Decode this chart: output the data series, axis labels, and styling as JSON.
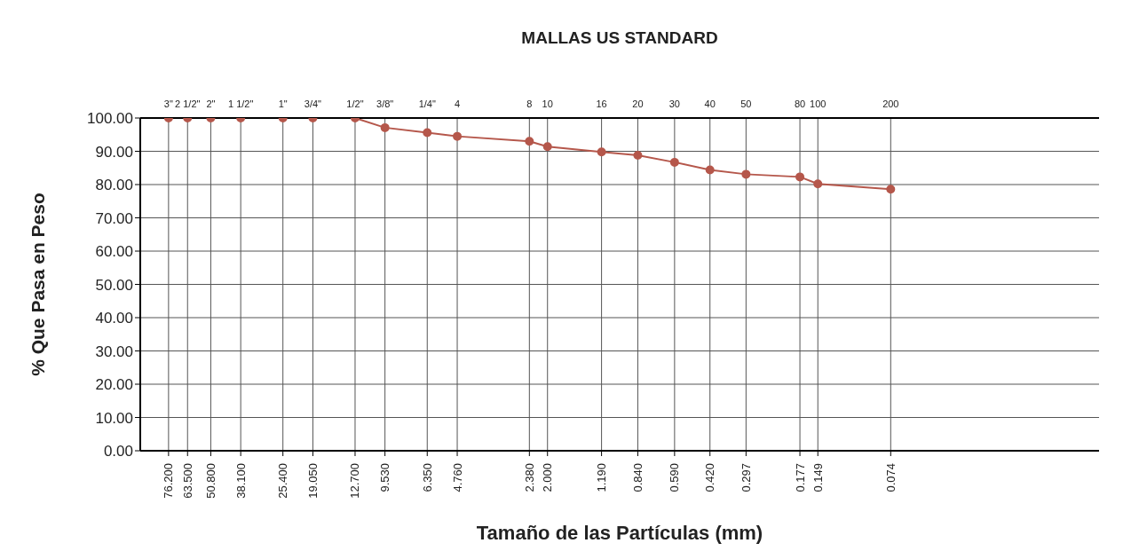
{
  "chart_data": {
    "type": "line",
    "title": "MALLAS US STANDARD",
    "xlabel": "Tamaño de las Partículas (mm)",
    "ylabel": "% Que Pasa en Peso",
    "x": [
      76.2,
      63.5,
      50.8,
      38.1,
      25.4,
      19.05,
      12.7,
      9.53,
      6.35,
      4.76,
      2.38,
      2.0,
      1.19,
      0.84,
      0.59,
      0.42,
      0.297,
      0.177,
      0.149,
      0.074
    ],
    "series": [
      {
        "color": "#b5574b",
        "values": [
          100,
          100,
          100,
          100,
          100,
          100,
          100,
          97.1,
          95.6,
          94.5,
          93.0,
          91.4,
          89.8,
          88.8,
          86.7,
          84.4,
          83.1,
          82.3,
          80.2,
          78.6
        ]
      }
    ],
    "log": "x",
    "xlim": [
      100,
      0.01
    ],
    "xticks": [
      {
        "value": 76.2,
        "label": "76.200"
      },
      {
        "value": 63.5,
        "label": "63.500"
      },
      {
        "value": 50.8,
        "label": "50.800"
      },
      {
        "value": 38.1,
        "label": "38.100"
      },
      {
        "value": 25.4,
        "label": "25.400"
      },
      {
        "value": 19.05,
        "label": "19.050"
      },
      {
        "value": 12.7,
        "label": "12.700"
      },
      {
        "value": 9.53,
        "label": "9.530"
      },
      {
        "value": 6.35,
        "label": "6.350"
      },
      {
        "value": 4.76,
        "label": "4.760"
      },
      {
        "value": 2.38,
        "label": "2.380"
      },
      {
        "value": 2.0,
        "label": "2.000"
      },
      {
        "value": 1.19,
        "label": "1.190"
      },
      {
        "value": 0.84,
        "label": "0.840"
      },
      {
        "value": 0.59,
        "label": "0.590"
      },
      {
        "value": 0.42,
        "label": "0.420"
      },
      {
        "value": 0.297,
        "label": "0.297"
      },
      {
        "value": 0.177,
        "label": "0.177"
      },
      {
        "value": 0.149,
        "label": "0.149"
      },
      {
        "value": 0.074,
        "label": "0.074"
      }
    ],
    "annotations": [
      "3\"",
      "2 1/2\"",
      "2\"",
      "1 1/2\"",
      "1\"",
      "3/4\"",
      "1/2\"",
      "3/8\"",
      "1/4\"",
      "4",
      "8",
      "10",
      "16",
      "20",
      "30",
      "40",
      "50",
      "80",
      "100",
      "200"
    ],
    "ylim": [
      0,
      100
    ],
    "yticks": [
      {
        "value": 0,
        "label": "0.00"
      },
      {
        "value": 10,
        "label": "10.00"
      },
      {
        "value": 20,
        "label": "20.00"
      },
      {
        "value": 30,
        "label": "30.00"
      },
      {
        "value": 40,
        "label": "40.00"
      },
      {
        "value": 50,
        "label": "50.00"
      },
      {
        "value": 60,
        "label": "60.00"
      },
      {
        "value": 70,
        "label": "70.00"
      },
      {
        "value": 80,
        "label": "80.00"
      },
      {
        "value": 90,
        "label": "90.00"
      },
      {
        "value": 100,
        "label": "100.00"
      }
    ],
    "grid": true,
    "marker": "circle",
    "line_style": "solid"
  }
}
